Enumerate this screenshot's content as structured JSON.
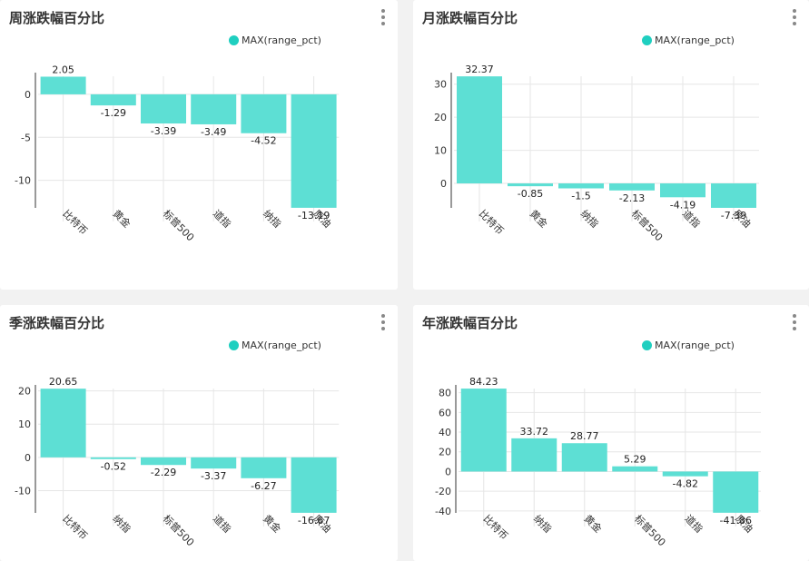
{
  "theme": {
    "bar_color": "#5ddfd4",
    "legend_dot_color": "#1fcfc0",
    "grid_color": "#e6e6e6",
    "axis_color": "#333333"
  },
  "chart_data": [
    {
      "type": "bar",
      "title": "周涨跌幅百分比",
      "legend": "MAX(range_pct)",
      "categories": [
        "比特币",
        "黄金",
        "标普500",
        "道指",
        "纳指",
        "原油"
      ],
      "values": [
        2.05,
        -1.29,
        -3.39,
        -3.49,
        -4.52,
        -13.19
      ],
      "value_labels": [
        "2.05",
        "-1.29",
        "-3.39",
        "-3.49",
        "-4.52",
        "-13.19"
      ],
      "ylim": [
        -13.2,
        2.1
      ],
      "yticks": [
        0,
        -5,
        -10
      ],
      "ytick_labels": [
        "0",
        "-5",
        "-10"
      ]
    },
    {
      "type": "bar",
      "title": "月涨跌幅百分比",
      "legend": "MAX(range_pct)",
      "categories": [
        "比特币",
        "黄金",
        "纳指",
        "标普500",
        "道指",
        "原油"
      ],
      "values": [
        32.37,
        -0.85,
        -1.5,
        -2.13,
        -4.19,
        -7.39
      ],
      "value_labels": [
        "32.37",
        "-0.85",
        "-1.5",
        "-2.13",
        "-4.19",
        "-7.39"
      ],
      "ylim": [
        -7.4,
        32.4
      ],
      "yticks": [
        30,
        20,
        10,
        0
      ],
      "ytick_labels": [
        "30",
        "20",
        "10",
        "0"
      ]
    },
    {
      "type": "bar",
      "title": "季涨跌幅百分比",
      "legend": "MAX(range_pct)",
      "categories": [
        "比特币",
        "纳指",
        "标普500",
        "道指",
        "黄金",
        "原油"
      ],
      "values": [
        20.65,
        -0.52,
        -2.29,
        -3.37,
        -6.27,
        -16.67
      ],
      "value_labels": [
        "20.65",
        "-0.52",
        "-2.29",
        "-3.37",
        "-6.27",
        "-16.67"
      ],
      "ylim": [
        -16.7,
        20.7
      ],
      "yticks": [
        20,
        10,
        0,
        -10
      ],
      "ytick_labels": [
        "20",
        "10",
        "0",
        "-10"
      ]
    },
    {
      "type": "bar",
      "title": "年涨跌幅百分比",
      "legend": "MAX(range_pct)",
      "categories": [
        "比特币",
        "纳指",
        "黄金",
        "标普500",
        "道指",
        "原油"
      ],
      "values": [
        84.23,
        33.72,
        28.77,
        5.29,
        -4.82,
        -41.86
      ],
      "value_labels": [
        "84.23",
        "33.72",
        "28.77",
        "5.29",
        "-4.82",
        "-41.86"
      ],
      "ylim": [
        -42,
        84.3
      ],
      "yticks": [
        80,
        60,
        40,
        20,
        0,
        -20,
        -40
      ],
      "ytick_labels": [
        "80",
        "60",
        "40",
        "20",
        "0",
        "-20",
        "-40"
      ]
    }
  ]
}
